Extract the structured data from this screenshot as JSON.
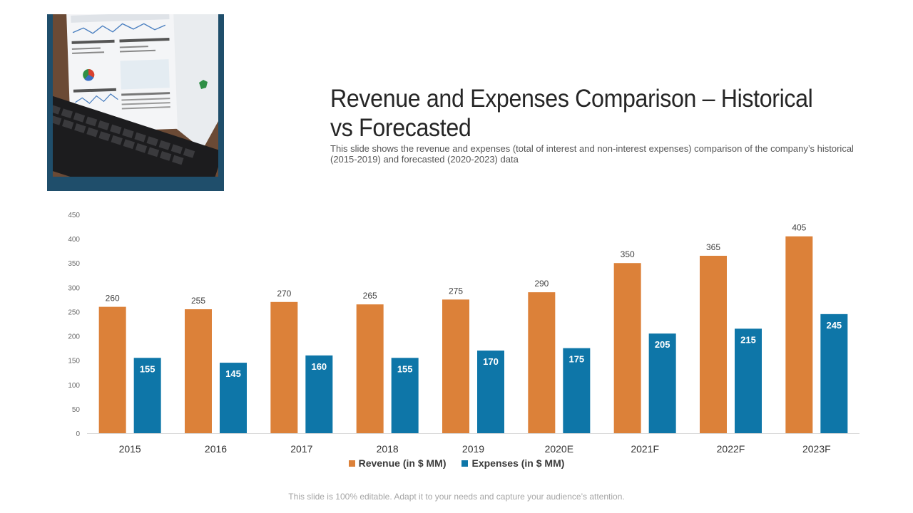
{
  "slide": {
    "title": "Revenue and Expenses Comparison – Historical vs Forecasted",
    "subtitle": "This slide shows the revenue and expenses (total of interest and non-interest expenses) comparison of the company’s historical (2015-2019) and forecasted (2020-2023) data",
    "footer": "This slide is 100% editable. Adapt it to your needs and capture your audience’s attention."
  },
  "colors": {
    "revenue": "#dc8139",
    "expenses": "#0e76a8",
    "frame": "#1f4e6b"
  },
  "chart_data": {
    "type": "bar",
    "categories": [
      "2015",
      "2016",
      "2017",
      "2018",
      "2019",
      "2020E",
      "2021F",
      "2022F",
      "2023F"
    ],
    "series": [
      {
        "name": "Revenue (in $ MM)",
        "values": [
          260,
          255,
          270,
          265,
          275,
          290,
          350,
          365,
          405
        ]
      },
      {
        "name": "Expenses (in $ MM)",
        "values": [
          155,
          145,
          160,
          155,
          170,
          175,
          205,
          215,
          245
        ]
      }
    ],
    "ylim": [
      0,
      450
    ],
    "yticks": [
      0,
      50,
      100,
      150,
      200,
      250,
      300,
      350,
      400,
      450
    ],
    "grid": false,
    "legend": "bottom-center"
  }
}
